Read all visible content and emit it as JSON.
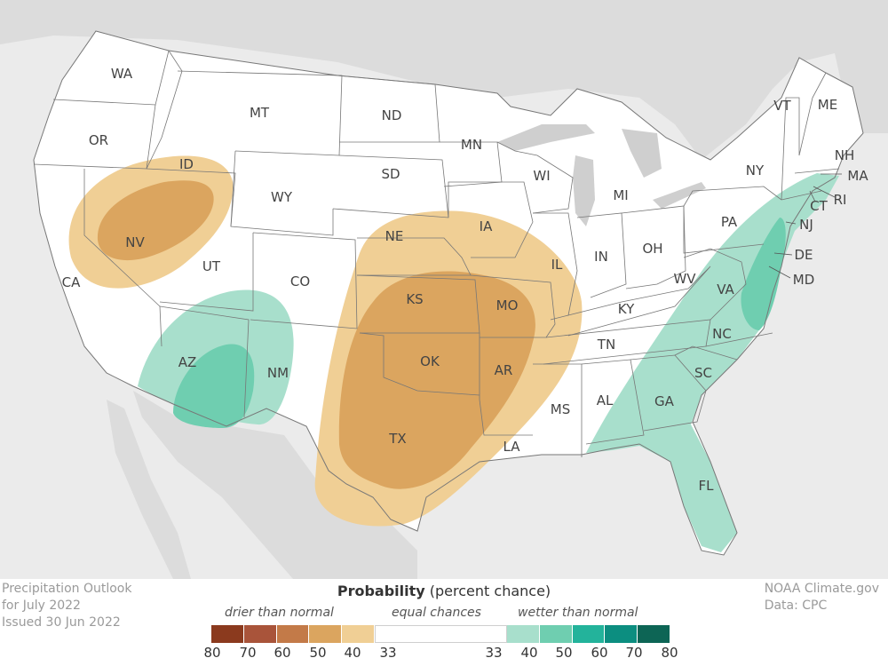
{
  "map": {
    "states": [
      "WA",
      "OR",
      "CA",
      "ID",
      "NV",
      "MT",
      "WY",
      "UT",
      "AZ",
      "CO",
      "NM",
      "ND",
      "SD",
      "NE",
      "KS",
      "OK",
      "TX",
      "MN",
      "IA",
      "MO",
      "AR",
      "LA",
      "WI",
      "IL",
      "MI",
      "IN",
      "OH",
      "KY",
      "TN",
      "MS",
      "AL",
      "GA",
      "FL",
      "SC",
      "NC",
      "VA",
      "WV",
      "PA",
      "NY",
      "VT",
      "ME",
      "NH",
      "MA",
      "RI",
      "CT",
      "NJ",
      "DE",
      "MD"
    ]
  },
  "info": {
    "line1": "Precipitation Outlook",
    "line2": "for July 2022",
    "line3": "Issued 30 Jun 2022"
  },
  "credit": {
    "line1": "NOAA Climate.gov",
    "line2": "Data: CPC"
  },
  "legend": {
    "title_bold": "Probability",
    "title_rest": "(percent chance)",
    "drier": "drier than normal",
    "equal": "equal chances",
    "wetter": "wetter than normal",
    "dry_colors": [
      "#8b3a1e",
      "#a9543a",
      "#c37a48",
      "#dba55f",
      "#f0cf95"
    ],
    "wet_colors": [
      "#a8dfcc",
      "#6fceb0",
      "#23b39b",
      "#0c8e80",
      "#0d6555"
    ],
    "ticks": [
      "80",
      "70",
      "60",
      "50",
      "40",
      "33",
      "33",
      "40",
      "50",
      "60",
      "70",
      "80"
    ]
  }
}
